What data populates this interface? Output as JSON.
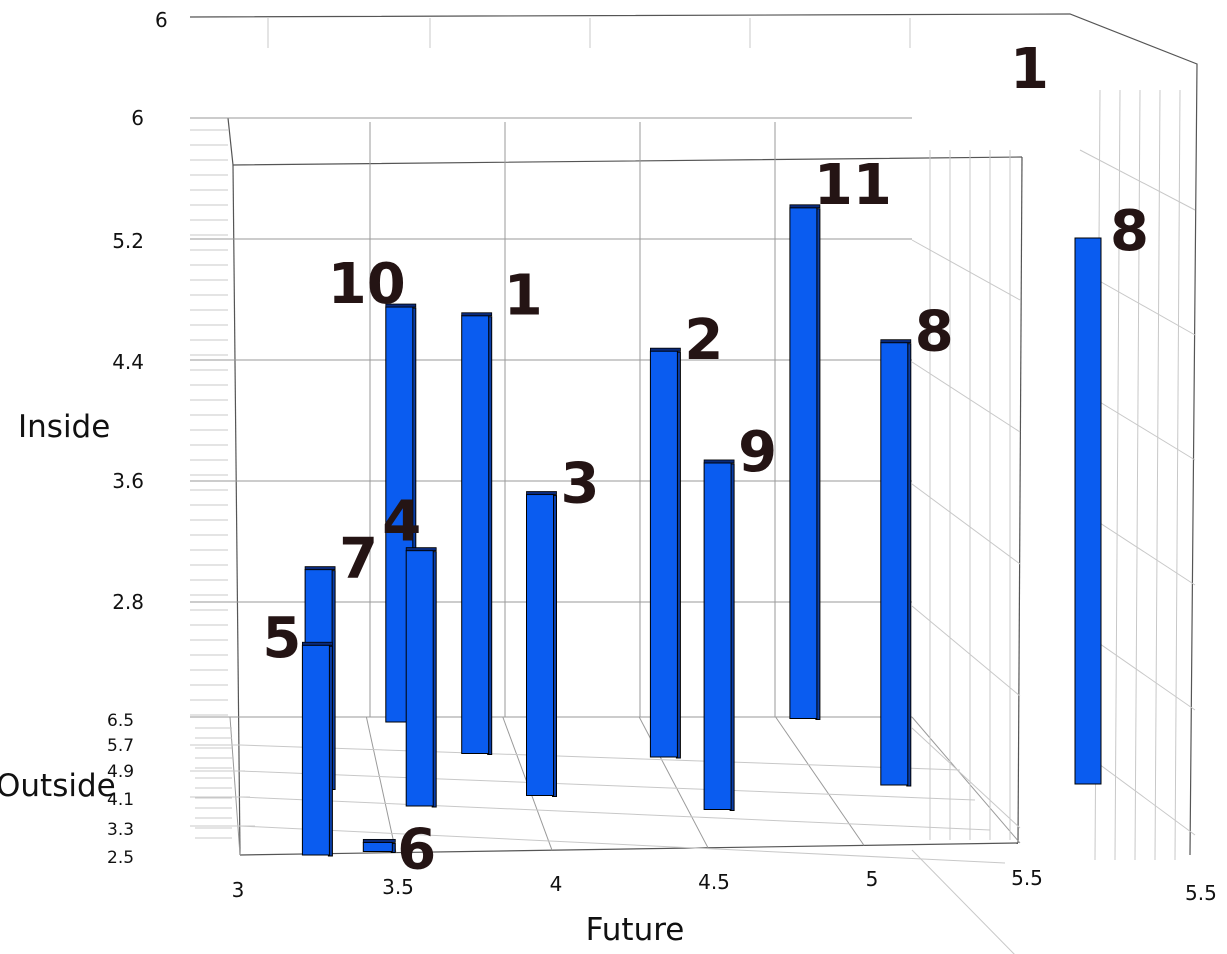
{
  "chart_data": {
    "type": "bar3d",
    "xlabel": "Future",
    "ylabel": "Inside",
    "zlabel": "Outside",
    "x_ticks": [
      "3",
      "3.5",
      "4",
      "4.5",
      "5",
      "5.5"
    ],
    "y_ticks": [
      "2.8",
      "3.6",
      "4.4",
      "5.2",
      "6"
    ],
    "z_ticks": [
      "2.5",
      "3.3",
      "4.1",
      "4.9",
      "5.7",
      "6.5"
    ],
    "bars": [
      {
        "label": "5",
        "future": 3.2,
        "inside": 2.3,
        "outside": 2.5
      },
      {
        "label": "7",
        "future": 3.3,
        "inside": 2.4,
        "outside": 4.4
      },
      {
        "label": "6",
        "future": 3.4,
        "inside": 0.1,
        "outside": 2.6
      },
      {
        "label": "4",
        "future": 3.6,
        "inside": 2.8,
        "outside": 3.9
      },
      {
        "label": "10",
        "future": 3.65,
        "inside": 4.55,
        "outside": 6.3
      },
      {
        "label": "1",
        "future": 3.85,
        "inside": 4.8,
        "outside": 5.4
      },
      {
        "label": "3",
        "future": 4.0,
        "inside": 3.3,
        "outside": 4.2
      },
      {
        "label": "2",
        "future": 4.45,
        "inside": 4.45,
        "outside": 5.3
      },
      {
        "label": "9",
        "future": 4.55,
        "inside": 3.8,
        "outside": 3.8
      },
      {
        "label": "11",
        "future": 4.95,
        "inside": 5.6,
        "outside": 6.4
      },
      {
        "label": "8",
        "future": 5.15,
        "inside": 4.85,
        "outside": 4.5
      }
    ],
    "bar_color": "#0a5cf0",
    "ghost": {
      "x_tick": "5.5",
      "y_tick": "6",
      "labels": [
        "8",
        "1"
      ]
    }
  }
}
